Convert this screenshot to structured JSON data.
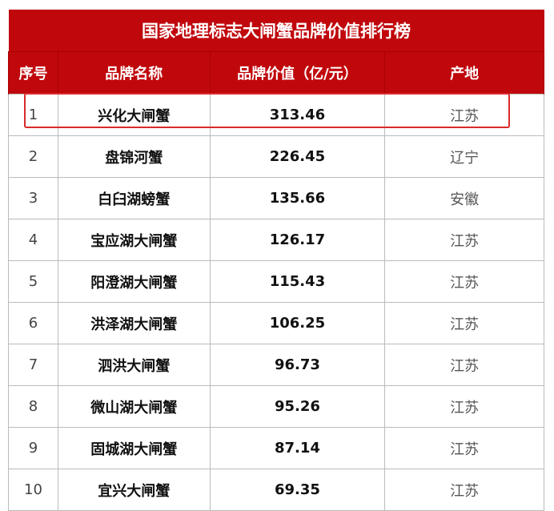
{
  "title": "国家地理标志大闸蟹品牌价值排行榜",
  "headers": [
    "序号",
    "品牌名称",
    "品牌价值（亿/元）",
    "产地"
  ],
  "rows": [
    [
      "1",
      "兴化大闸蟹",
      "313.46",
      "江苏"
    ],
    [
      "2",
      "盘锦河蟹",
      "226.45",
      "辽宁"
    ],
    [
      "3",
      "白臼湖螃蟹",
      "135.66",
      "安徽"
    ],
    [
      "4",
      "宝应湖大闸蟹",
      "126.17",
      "江苏"
    ],
    [
      "5",
      "阳澄湖大闸蟹",
      "115.43",
      "江苏"
    ],
    [
      "6",
      "洪泽湖大闸蟹",
      "106.25",
      "江苏"
    ],
    [
      "7",
      "泗洪大闸蟹",
      "96.73",
      "江苏"
    ],
    [
      "8",
      "微山湖大闸蟹",
      "95.26",
      "江苏"
    ],
    [
      "9",
      "固城湖大闸蟹",
      "87.14",
      "江苏"
    ],
    [
      "10",
      "宜兴大闸蟹",
      "69.35",
      "江苏"
    ]
  ],
  "highlight_color": "#d92a2a",
  "header_color": "#c0080c"
}
